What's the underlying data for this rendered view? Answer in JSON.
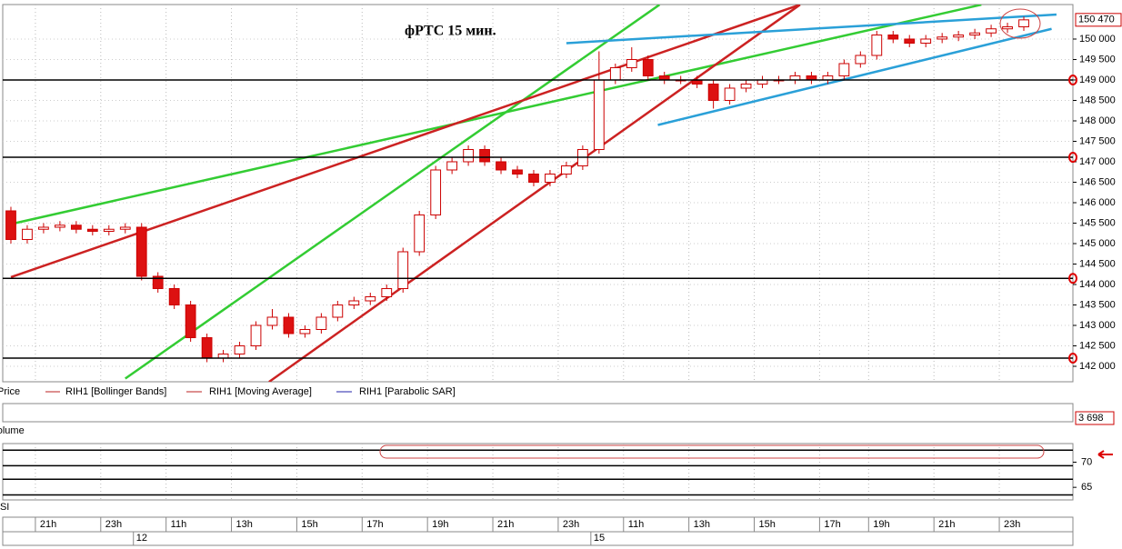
{
  "chart_data": {
    "type": "candlestick",
    "title": "фРТС   15 мин.",
    "legend": [
      "Price",
      "RIH1 [Bollinger Bands]",
      "RIH1 [Moving Average]",
      "RIH1 [Parabolic SAR]"
    ],
    "volume_label": "Volume",
    "rsi_label": "RSI",
    "up_color": "#ffffff",
    "down_color": "#dd1111",
    "outline_color": "#cc0000",
    "ylim": [
      141622,
      150844
    ],
    "yticks": [
      {
        "value": 142000,
        "label": "142 000"
      },
      {
        "value": 142500,
        "label": "142 500"
      },
      {
        "value": 143000,
        "label": "143 000"
      },
      {
        "value": 143500,
        "label": "143 500"
      },
      {
        "value": 144000,
        "label": "144 000"
      },
      {
        "value": 144500,
        "label": "144 500"
      },
      {
        "value": 145000,
        "label": "145 000"
      },
      {
        "value": 145500,
        "label": "145 500"
      },
      {
        "value": 146000,
        "label": "146 000"
      },
      {
        "value": 146500,
        "label": "146 500"
      },
      {
        "value": 147000,
        "label": "147 000"
      },
      {
        "value": 147500,
        "label": "147 500"
      },
      {
        "value": 148000,
        "label": "148 000"
      },
      {
        "value": 148500,
        "label": "148 500"
      },
      {
        "value": 149000,
        "label": "149 000"
      },
      {
        "value": 149500,
        "label": "149 500"
      },
      {
        "value": 150000,
        "label": "150 000"
      }
    ],
    "last_price": {
      "value": 150470,
      "label": "150 470"
    },
    "last_volume": {
      "value": 3698,
      "label": "3 698"
    },
    "rsi_ylim": [
      62.5,
      73.7
    ],
    "rsi_ticks": [
      65,
      70
    ],
    "rsi_levels": [
      72.4,
      69.3,
      66.6,
      63.5
    ],
    "levels": [
      149000,
      147110,
      144150,
      142200
    ],
    "trend_lines": [
      {
        "color": "#33cc33",
        "x": [
          -0.3,
          59.4
        ],
        "y": [
          145450,
          150840
        ]
      },
      {
        "color": "#33cc33",
        "x": [
          7,
          39.7
        ],
        "y": [
          141700,
          150840
        ]
      },
      {
        "color": "#cc2222",
        "x": [
          0,
          48.3
        ],
        "y": [
          144180,
          150840
        ]
      },
      {
        "color": "#cc2222",
        "x": [
          15.8,
          48.3
        ],
        "y": [
          141620,
          150840
        ]
      },
      {
        "color": "#2aa0d8",
        "x": [
          34,
          64
        ],
        "y": [
          149900,
          150600
        ]
      },
      {
        "color": "#2aa0d8",
        "x": [
          39.6,
          63.7
        ],
        "y": [
          147900,
          150250
        ]
      }
    ],
    "candles": [
      [
        145800,
        145900,
        145000,
        145100
      ],
      [
        145100,
        145450,
        145000,
        145350
      ],
      [
        145350,
        145500,
        145250,
        145400
      ],
      [
        145400,
        145550,
        145300,
        145450
      ],
      [
        145450,
        145550,
        145250,
        145350
      ],
      [
        145350,
        145450,
        145200,
        145300
      ],
      [
        145300,
        145450,
        145200,
        145350
      ],
      [
        145350,
        145500,
        145250,
        145400
      ],
      [
        145400,
        145500,
        144100,
        144200
      ],
      [
        144200,
        144300,
        143800,
        143900
      ],
      [
        143900,
        144000,
        143400,
        143500
      ],
      [
        143500,
        143600,
        142600,
        142700
      ],
      [
        142700,
        142800,
        142100,
        142200
      ],
      [
        142200,
        142400,
        142100,
        142300
      ],
      [
        142300,
        142600,
        142200,
        142500
      ],
      [
        142500,
        143100,
        142400,
        143000
      ],
      [
        143000,
        143400,
        142900,
        143200
      ],
      [
        143200,
        143300,
        142700,
        142800
      ],
      [
        142800,
        143000,
        142700,
        142900
      ],
      [
        142900,
        143300,
        142800,
        143200
      ],
      [
        143200,
        143600,
        143100,
        143500
      ],
      [
        143500,
        143700,
        143400,
        143600
      ],
      [
        143600,
        143800,
        143500,
        143700
      ],
      [
        143700,
        144000,
        143600,
        143900
      ],
      [
        143900,
        144900,
        143800,
        144800
      ],
      [
        144800,
        145800,
        144700,
        145700
      ],
      [
        145700,
        146900,
        145600,
        146800
      ],
      [
        146800,
        147100,
        146700,
        147000
      ],
      [
        147000,
        147400,
        146900,
        147300
      ],
      [
        147300,
        147400,
        146900,
        147000
      ],
      [
        147000,
        147100,
        146700,
        146800
      ],
      [
        146800,
        146900,
        146600,
        146700
      ],
      [
        146700,
        146800,
        146400,
        146500
      ],
      [
        146500,
        146800,
        146400,
        146700
      ],
      [
        146700,
        147000,
        146600,
        146900
      ],
      [
        146900,
        147400,
        146800,
        147300
      ],
      [
        147300,
        149700,
        147200,
        149000
      ],
      [
        149000,
        149400,
        148900,
        149300
      ],
      [
        149300,
        149800,
        149200,
        149500
      ],
      [
        149500,
        149600,
        149000,
        149100
      ],
      [
        149100,
        149200,
        148900,
        149000
      ],
      [
        149000,
        149100,
        148900,
        149000
      ],
      [
        149000,
        149100,
        148800,
        148900
      ],
      [
        148900,
        149000,
        148300,
        148500
      ],
      [
        148500,
        148900,
        148400,
        148800
      ],
      [
        148800,
        149000,
        148700,
        148900
      ],
      [
        148900,
        149100,
        148800,
        149000
      ],
      [
        149000,
        149100,
        148900,
        149000
      ],
      [
        149000,
        149200,
        148900,
        149100
      ],
      [
        149100,
        149200,
        148900,
        149000
      ],
      [
        149000,
        149200,
        148900,
        149100
      ],
      [
        149100,
        149500,
        149000,
        149400
      ],
      [
        149400,
        149700,
        149300,
        149600
      ],
      [
        149600,
        150200,
        149500,
        150100
      ],
      [
        150100,
        150200,
        149900,
        150000
      ],
      [
        150000,
        150100,
        149800,
        149900
      ],
      [
        149900,
        150100,
        149800,
        150000
      ],
      [
        150000,
        150150,
        149900,
        150050
      ],
      [
        150050,
        150200,
        149950,
        150100
      ],
      [
        150100,
        150250,
        150000,
        150150
      ],
      [
        150150,
        150350,
        150050,
        150250
      ],
      [
        150250,
        150400,
        150150,
        150300
      ],
      [
        150300,
        150550,
        150200,
        150470
      ]
    ],
    "categories": [
      null,
      null,
      "21h",
      null,
      null,
      null,
      "23h",
      null,
      null,
      null,
      "11h",
      null,
      null,
      null,
      "13h",
      null,
      null,
      null,
      "15h",
      null,
      null,
      null,
      "17h",
      null,
      null,
      null,
      "19h",
      null,
      null,
      null,
      "21h",
      null,
      null,
      null,
      "23h",
      null,
      null,
      null,
      "11h",
      null,
      null,
      null,
      "13h",
      null,
      null,
      null,
      "15h",
      null,
      null,
      null,
      "17h",
      null,
      null,
      "19h",
      null,
      null,
      null,
      "21h",
      null,
      null,
      null,
      "23h",
      null
    ],
    "dates": [
      null,
      null,
      null,
      null,
      null,
      null,
      null,
      null,
      "12",
      null,
      null,
      null,
      null,
      null,
      null,
      null,
      null,
      null,
      null,
      null,
      null,
      null,
      null,
      null,
      null,
      null,
      null,
      null,
      null,
      null,
      null,
      null,
      null,
      null,
      null,
      null,
      "15",
      null,
      null,
      null,
      null,
      null,
      null,
      null,
      null,
      null,
      null,
      null,
      null,
      null,
      null,
      null,
      null,
      null,
      null,
      null,
      null,
      null,
      null,
      null,
      null,
      null,
      null
    ]
  }
}
